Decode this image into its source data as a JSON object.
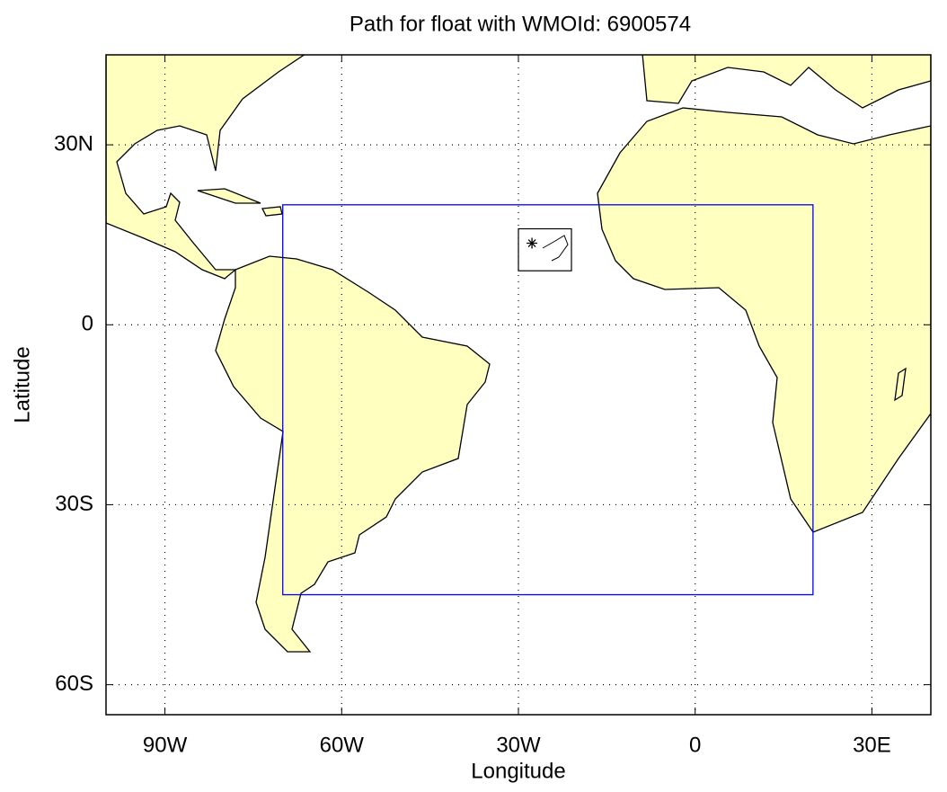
{
  "chart_data": {
    "type": "map",
    "title": "Path for float with WMOId: 6900574",
    "xlabel": "Longitude",
    "ylabel": "Latitude",
    "xlim": [
      -100,
      40
    ],
    "ylim": [
      -65,
      45
    ],
    "xticks": [
      {
        "value": -90,
        "label": "90W"
      },
      {
        "value": -60,
        "label": "60W"
      },
      {
        "value": -30,
        "label": "30W"
      },
      0,
      {
        "value": 30,
        "label": "30E"
      }
    ],
    "yticks": [
      {
        "value": 30,
        "label": "30N"
      },
      0,
      {
        "value": -30,
        "label": "30S"
      },
      {
        "value": -60,
        "label": "60S"
      }
    ],
    "grid": true,
    "land_color": "#ffffc0",
    "region": {
      "lon": [
        -70,
        20
      ],
      "lat": [
        -45,
        20
      ],
      "color": "#0000ff"
    },
    "inset": {
      "lon": [
        -30,
        -21
      ],
      "lat": [
        9,
        16
      ]
    },
    "x": [
      -27.7
    ],
    "y": [
      13.6
    ]
  }
}
